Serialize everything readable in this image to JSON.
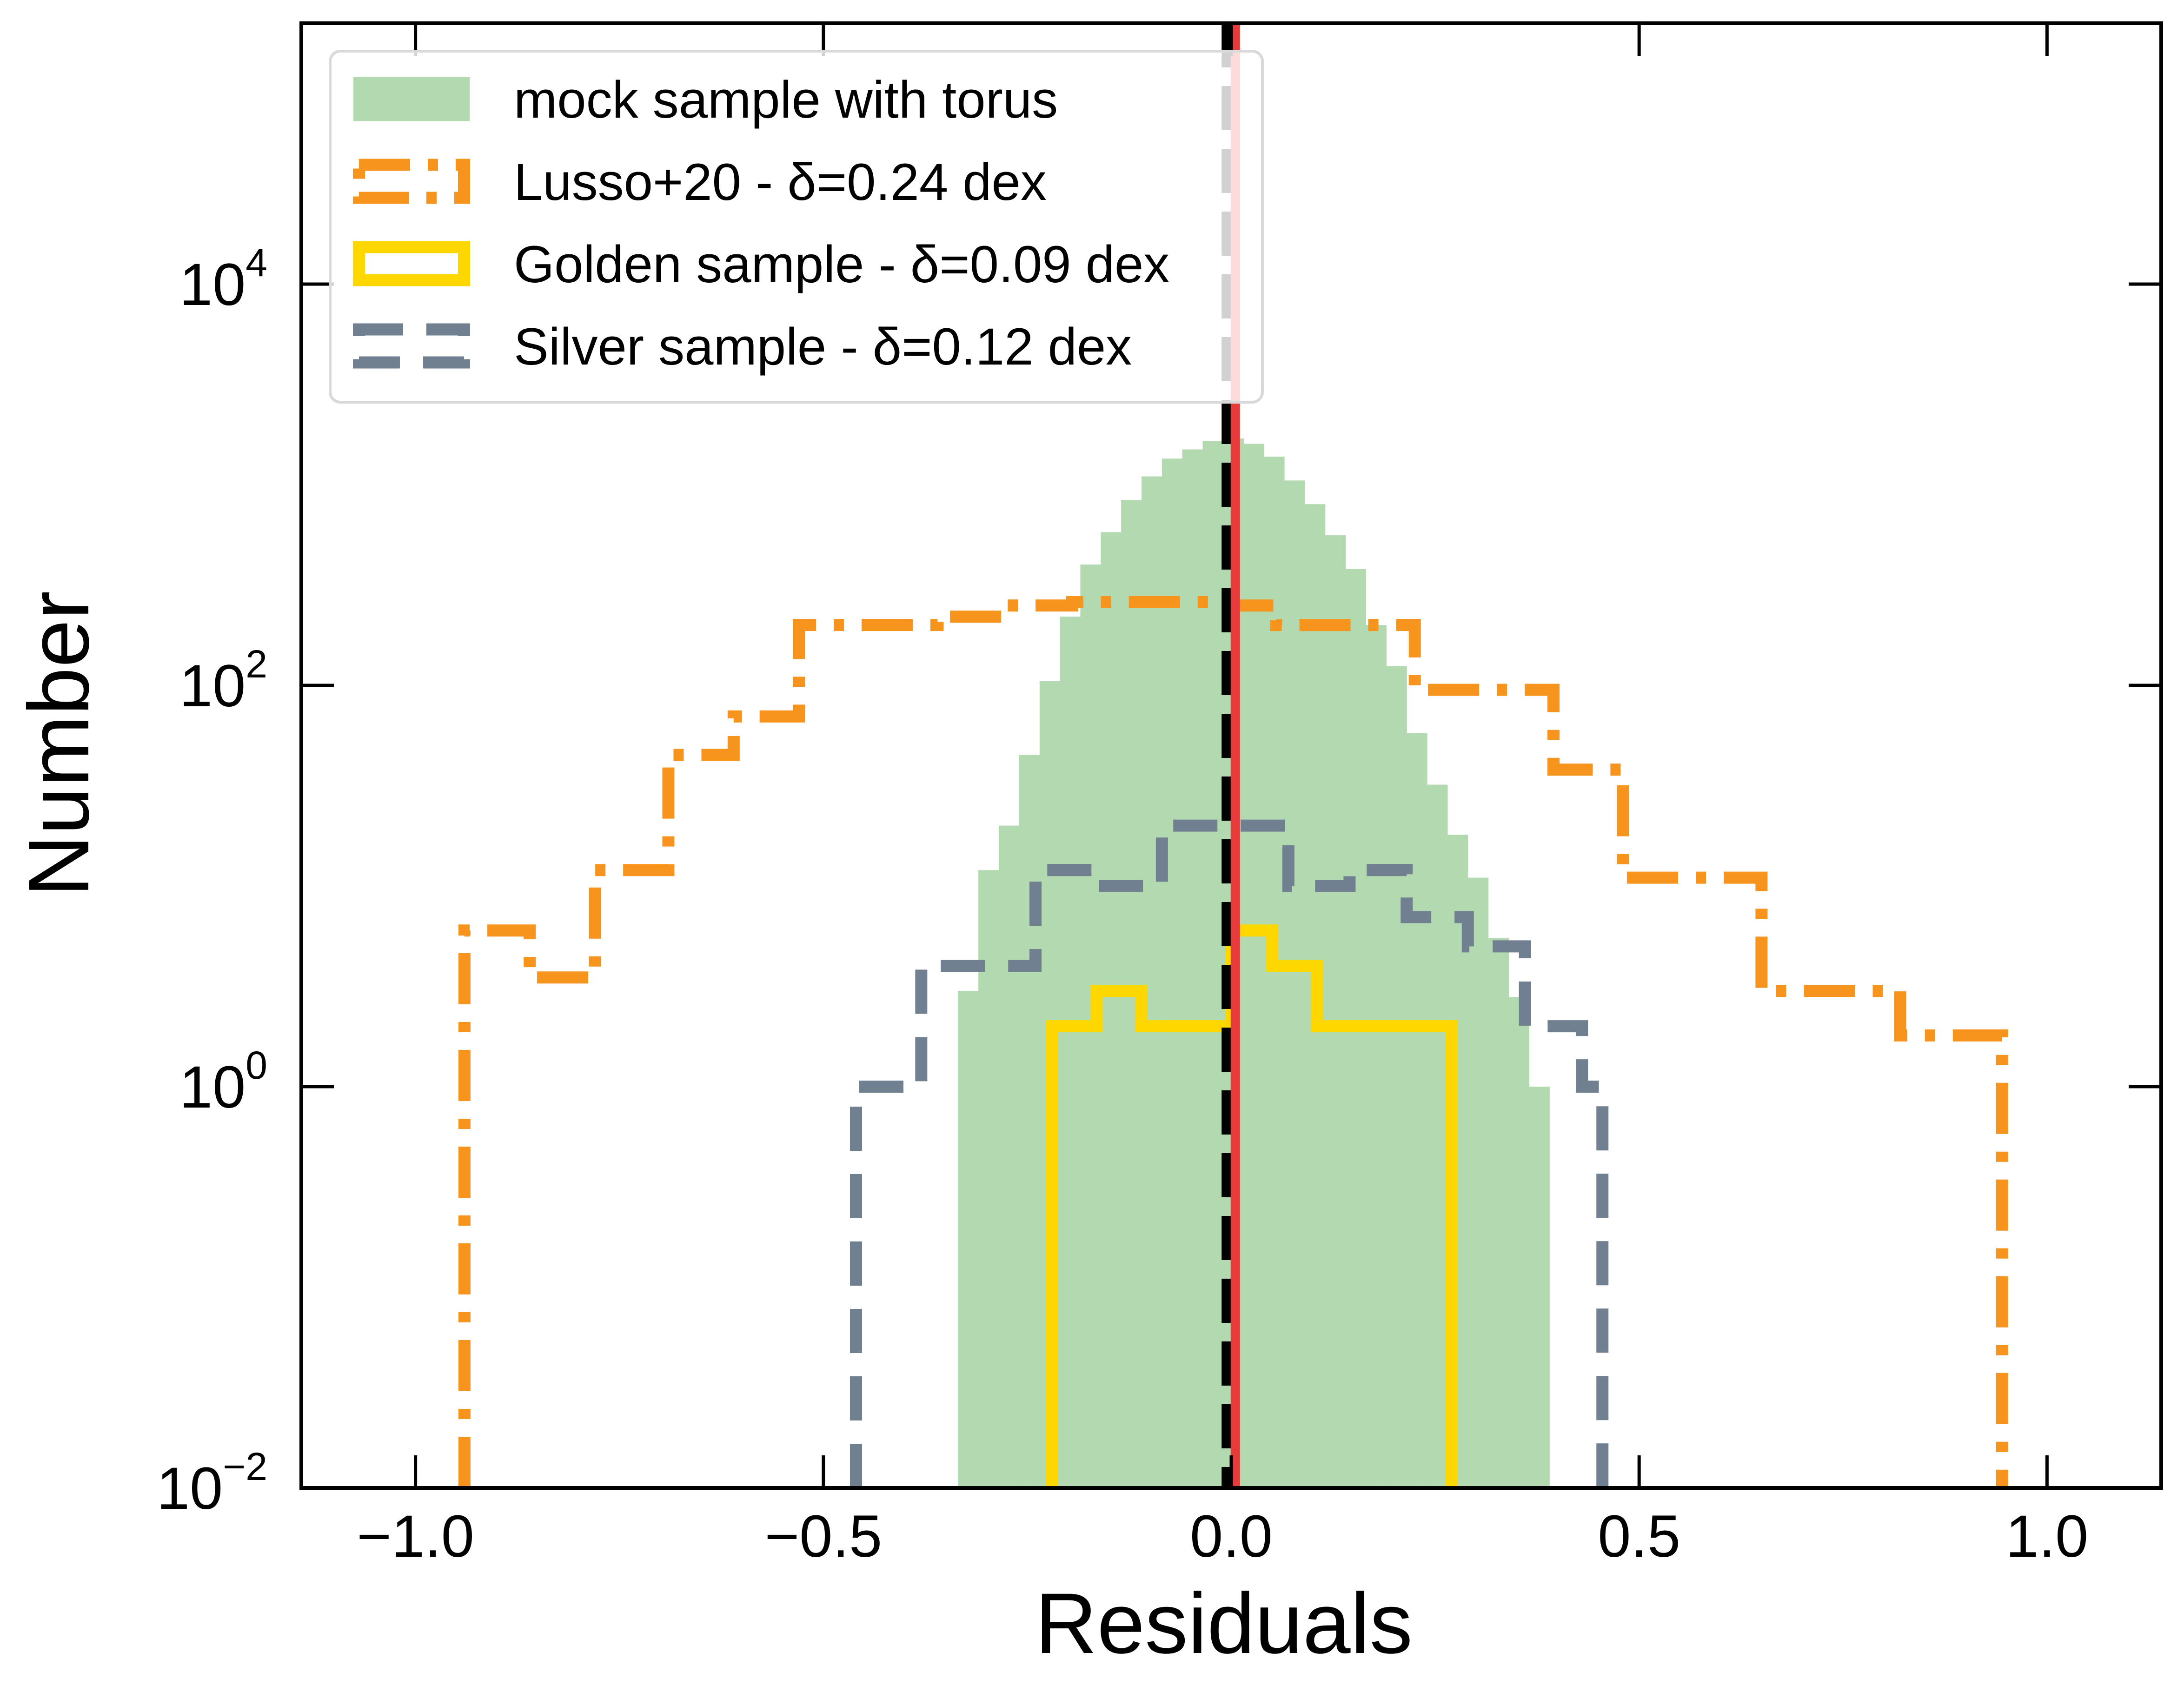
{
  "chart_data": {
    "type": "histogram",
    "title": "",
    "xlabel": "Residuals",
    "ylabel": "Number",
    "xlim": [
      -1.14,
      1.14
    ],
    "ylim_log10": [
      -2,
      5.3
    ],
    "yscale": "log",
    "x_ticks": [
      {
        "value": -1.0,
        "label": "−1.0"
      },
      {
        "value": -0.5,
        "label": "−0.5"
      },
      {
        "value": 0.0,
        "label": "0.0"
      },
      {
        "value": 0.5,
        "label": "0.5"
      },
      {
        "value": 1.0,
        "label": "1.0"
      }
    ],
    "y_ticks": [
      {
        "exponent": -2,
        "base": "10",
        "exp_label": "−2"
      },
      {
        "exponent": 0,
        "base": "10",
        "exp_label": "0"
      },
      {
        "exponent": 2,
        "base": "10",
        "exp_label": "2"
      },
      {
        "exponent": 4,
        "base": "10",
        "exp_label": "4"
      }
    ],
    "legend": {
      "position": "upper-left",
      "entries": [
        {
          "series": "mock",
          "label": "mock sample with torus"
        },
        {
          "series": "lusso",
          "label": "Lusso+20 - δ=0.24 dex"
        },
        {
          "series": "golden",
          "label": "Golden sample - δ=0.09 dex"
        },
        {
          "series": "silver",
          "label": "Silver sample - δ=0.12 dex"
        }
      ]
    },
    "series": [
      {
        "name": "mock sample with torus",
        "key": "mock",
        "style": "filled",
        "color": "#b3d9b1",
        "edges": [
          -0.335,
          -0.31,
          -0.285,
          -0.26,
          -0.235,
          -0.21,
          -0.185,
          -0.16,
          -0.135,
          -0.11,
          -0.085,
          -0.06,
          -0.035,
          -0.01,
          0.015,
          0.04,
          0.065,
          0.09,
          0.115,
          0.14,
          0.165,
          0.19,
          0.215,
          0.24,
          0.265,
          0.29,
          0.315,
          0.34,
          0.365,
          0.39
        ],
        "counts": [
          3,
          12,
          20,
          45,
          105,
          220,
          400,
          580,
          840,
          1100,
          1350,
          1500,
          1650,
          1700,
          1600,
          1380,
          1050,
          800,
          560,
          380,
          200,
          125,
          58,
          32,
          18,
          11,
          5.5,
          2.8,
          1.0
        ]
      },
      {
        "name": "Lusso+20 - δ=0.24 dex",
        "key": "lusso",
        "style": "dashdot",
        "color": "#f7941d",
        "edges": [
          -0.94,
          -0.86,
          -0.78,
          -0.69,
          -0.61,
          -0.53,
          -0.36,
          -0.28,
          -0.195,
          -0.11,
          -0.025,
          0.055,
          0.14,
          0.225,
          0.31,
          0.395,
          0.48,
          0.565,
          0.65,
          0.735,
          0.82,
          0.905,
          0.945
        ],
        "counts": [
          6,
          3.5,
          12,
          45,
          70,
          200,
          220,
          250,
          260,
          260,
          250,
          200,
          200,
          95,
          95,
          38,
          11,
          11,
          3,
          3,
          1.8,
          1.8
        ]
      },
      {
        "name": "Golden sample - δ=0.09 dex",
        "key": "golden",
        "style": "solid",
        "color": "#ffd700",
        "edges": [
          -0.22,
          -0.165,
          -0.11,
          -0.055,
          0.0,
          0.05,
          0.105,
          0.16,
          0.215,
          0.27
        ],
        "counts": [
          2,
          3,
          2,
          2,
          6,
          4,
          2,
          2,
          2
        ]
      },
      {
        "name": "Silver sample - δ=0.12 dex",
        "key": "silver",
        "style": "dashed",
        "color": "#708090",
        "edges": [
          -0.46,
          -0.38,
          -0.31,
          -0.24,
          -0.165,
          -0.085,
          0.0,
          0.07,
          0.145,
          0.215,
          0.29,
          0.36,
          0.43,
          0.455
        ],
        "counts": [
          1,
          4,
          4,
          12,
          10,
          20,
          20,
          10,
          12,
          7,
          5,
          2,
          1
        ]
      }
    ],
    "vertical_lines": [
      {
        "x": -0.005,
        "color": "#000000",
        "style": "dashed"
      },
      {
        "x": 0.005,
        "color": "#e53b3b",
        "style": "solid"
      }
    ]
  }
}
